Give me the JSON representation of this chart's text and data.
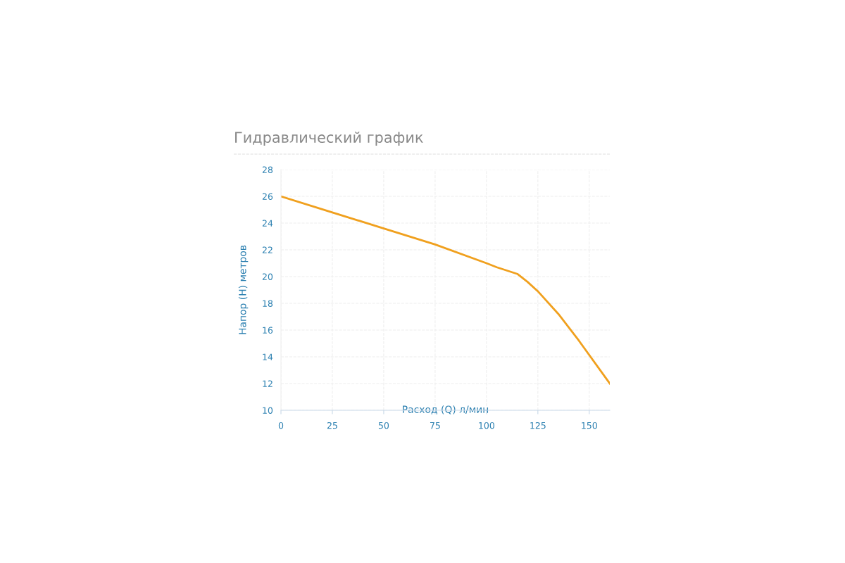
{
  "chart_data": {
    "type": "line",
    "title": "Гидравлический график",
    "xlabel": "Расход (Q) л/мин",
    "ylabel": "Напор (H) метров",
    "series": [
      {
        "color": "#f0a01e",
        "x": [
          0,
          25,
          50,
          75,
          100,
          105,
          115,
          120,
          125,
          135,
          145,
          160
        ],
        "values": [
          26,
          24.8,
          23.6,
          22.4,
          21.0,
          20.7,
          20.2,
          19.6,
          18.9,
          17.2,
          15.2,
          12.0
        ]
      }
    ],
    "xlim": [
      0,
      160
    ],
    "xticks": [
      0,
      25,
      50,
      75,
      100,
      125,
      150
    ],
    "ylim": [
      10,
      28
    ],
    "yticks": [
      10,
      12,
      14,
      16,
      18,
      20,
      22,
      24,
      26,
      28
    ],
    "grid": true,
    "marker": "none",
    "line_style": "solid",
    "legend": false
  }
}
